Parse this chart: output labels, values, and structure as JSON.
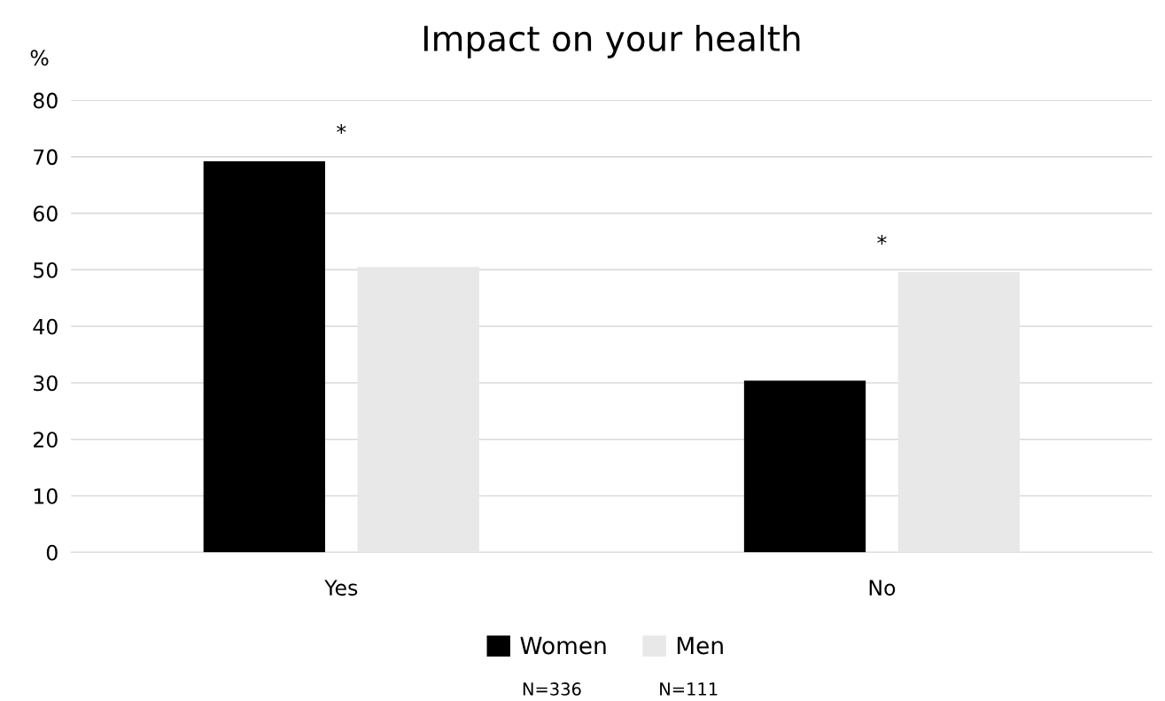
{
  "chart_data": {
    "type": "bar",
    "title": "Impact on your health",
    "ylabel": "%",
    "categories": [
      "Yes",
      "No"
    ],
    "series": [
      {
        "name": "Women",
        "color": "#000000",
        "values": [
          69.2,
          30.4
        ]
      },
      {
        "name": "Men",
        "color": "#e8e8e8",
        "values": [
          50.5,
          49.6
        ]
      }
    ],
    "ylim": [
      0,
      80
    ],
    "yticks": [
      0,
      10,
      20,
      30,
      40,
      50,
      60,
      70,
      80
    ],
    "grid": "y",
    "legend": "bottom",
    "annotations": [
      "*",
      "*",
      "N=336",
      "N=111"
    ]
  }
}
